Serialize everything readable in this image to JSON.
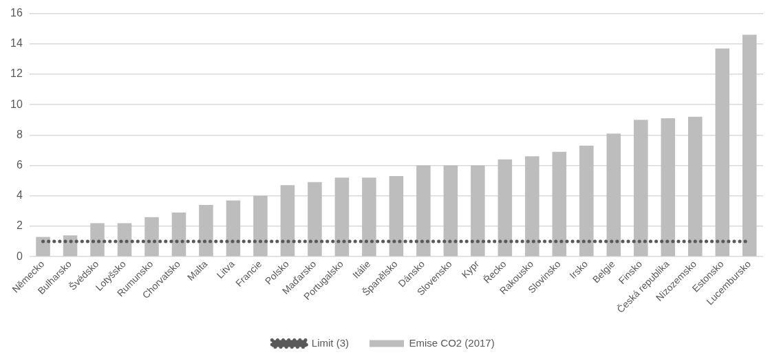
{
  "chart_data": {
    "type": "bar",
    "categories": [
      "Německo",
      "Bulharsko",
      "Švédsko",
      "Lotyšsko",
      "Rumunsko",
      "Chorvatsko",
      "Malta",
      "Litva",
      "Francie",
      "Polsko",
      "Maďarsko",
      "Portugalsko",
      "Itálie",
      "Španělsko",
      "Dánsko",
      "Slovensko",
      "Kypr",
      "Řecko",
      "Rakousko",
      "Slovinsko",
      "Irsko",
      "Belgie",
      "Finsko",
      "Česká republika",
      "Nizozemsko",
      "Estonsko",
      "Lucembursko"
    ],
    "series": [
      {
        "name": "Emise CO2 (2017)",
        "color": "#bdbdbd",
        "values": [
          1.3,
          1.4,
          2.2,
          2.2,
          2.6,
          2.9,
          3.4,
          3.7,
          4.0,
          4.7,
          4.9,
          5.2,
          5.2,
          5.3,
          6.0,
          6.0,
          6.0,
          6.4,
          6.6,
          6.9,
          7.3,
          8.1,
          9.0,
          9.1,
          9.2,
          13.7,
          14.6
        ]
      },
      {
        "name": "Limit (3)",
        "type": "line",
        "color": "#595959",
        "line_style": "dotted",
        "values": [
          1,
          1,
          1,
          1,
          1,
          1,
          1,
          1,
          1,
          1,
          1,
          1,
          1,
          1,
          1,
          1,
          1,
          1,
          1,
          1,
          1,
          1,
          1,
          1,
          1,
          1,
          1
        ]
      }
    ],
    "ylim": [
      0,
      16
    ],
    "yticks": [
      0,
      2,
      4,
      6,
      8,
      10,
      12,
      14,
      16
    ],
    "grid": "y",
    "legend": "bottom"
  }
}
